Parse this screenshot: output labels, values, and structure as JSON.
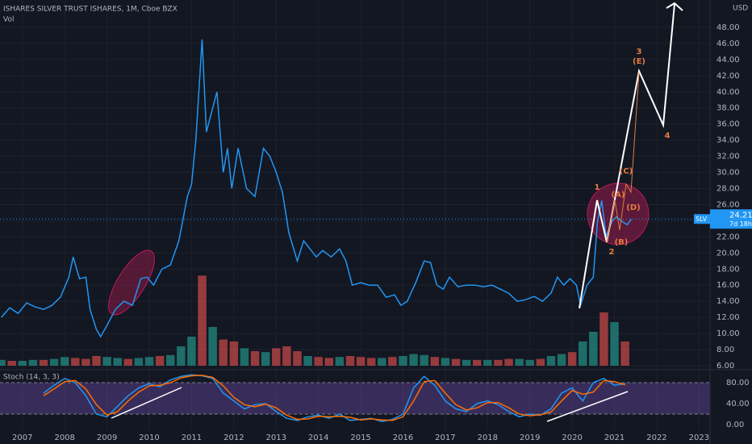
{
  "header": {
    "title": "ISHARES SILVER TRUST ISHARES, 1M, Cboe BZX",
    "volume_label": "Vol",
    "currency": "USD"
  },
  "chart_data": [
    {
      "type": "line",
      "color": "#2196f3",
      "xlim": [
        2006.47,
        2023.26
      ],
      "ylim": [
        5.5,
        51.4
      ],
      "xticks": [
        2007,
        2008,
        2009,
        2010,
        2011,
        2012,
        2013,
        2014,
        2015,
        2016,
        2017,
        2018,
        2019,
        2020,
        2021,
        2022,
        2023
      ],
      "yticks": [
        {
          "value": 6,
          "label": "6.00"
        },
        {
          "value": 8,
          "label": "8.00"
        },
        {
          "value": 10,
          "label": "10.00"
        },
        {
          "value": 12,
          "label": "12.00"
        },
        {
          "value": 14,
          "label": "14.00"
        },
        {
          "value": 16,
          "label": "16.00"
        },
        {
          "value": 18,
          "label": "18.00"
        },
        {
          "value": 20,
          "label": "20.00"
        },
        {
          "value": 22,
          "label": "22.00"
        },
        {
          "value": 24,
          "label": "24.00"
        },
        {
          "value": 26,
          "label": "26.00"
        },
        {
          "value": 28,
          "label": "28.00"
        },
        {
          "value": 30,
          "label": "30.00"
        },
        {
          "value": 32,
          "label": "32.00"
        },
        {
          "value": 34,
          "label": "34.00"
        },
        {
          "value": 36,
          "label": "36.00"
        },
        {
          "value": 38,
          "label": "38.00"
        },
        {
          "value": 40,
          "label": "40.00"
        },
        {
          "value": 42,
          "label": "42.00"
        },
        {
          "value": 44,
          "label": "44.00"
        },
        {
          "value": 46,
          "label": "46.00"
        },
        {
          "value": 48,
          "label": "48.00"
        }
      ],
      "x": [
        2006.5,
        2006.7,
        2006.9,
        2007.1,
        2007.3,
        2007.5,
        2007.7,
        2007.9,
        2008.1,
        2008.2,
        2008.35,
        2008.5,
        2008.6,
        2008.75,
        2008.85,
        2009.0,
        2009.2,
        2009.4,
        2009.6,
        2009.8,
        2009.95,
        2010.1,
        2010.3,
        2010.5,
        2010.7,
        2010.9,
        2011.0,
        2011.1,
        2011.25,
        2011.35,
        2011.5,
        2011.6,
        2011.75,
        2011.85,
        2011.95,
        2012.1,
        2012.3,
        2012.5,
        2012.7,
        2012.85,
        2013.0,
        2013.15,
        2013.3,
        2013.5,
        2013.65,
        2013.8,
        2013.95,
        2014.1,
        2014.3,
        2014.5,
        2014.65,
        2014.8,
        2015.0,
        2015.2,
        2015.4,
        2015.6,
        2015.8,
        2015.95,
        2016.1,
        2016.3,
        2016.5,
        2016.65,
        2016.8,
        2016.95,
        2017.1,
        2017.3,
        2017.5,
        2017.7,
        2017.9,
        2018.1,
        2018.3,
        2018.5,
        2018.7,
        2018.9,
        2019.1,
        2019.3,
        2019.5,
        2019.65,
        2019.8,
        2019.95,
        2020.1,
        2020.2,
        2020.35,
        2020.5,
        2020.6,
        2020.7,
        2020.8,
        2020.95,
        2021.05,
        2021.15,
        2021.3,
        2021.4
      ],
      "values": [
        12.0,
        13.2,
        12.5,
        13.8,
        13.3,
        13.0,
        13.5,
        14.5,
        17.0,
        19.5,
        16.8,
        17.0,
        13.0,
        10.5,
        9.6,
        11.0,
        13.0,
        14.0,
        13.5,
        16.8,
        17.0,
        16.0,
        18.0,
        18.5,
        21.5,
        27.0,
        28.5,
        34.0,
        46.5,
        35.0,
        38.0,
        40.0,
        30.0,
        33.0,
        28.0,
        33.0,
        28.0,
        27.0,
        33.0,
        32.0,
        30.0,
        27.5,
        22.5,
        19.0,
        21.5,
        20.5,
        19.5,
        20.3,
        19.5,
        20.5,
        19.0,
        16.0,
        16.3,
        16.0,
        16.0,
        14.5,
        14.8,
        13.5,
        14.0,
        16.3,
        19.0,
        18.8,
        16.0,
        15.5,
        17.0,
        15.8,
        16.0,
        16.0,
        15.8,
        16.0,
        15.5,
        15.0,
        14.0,
        14.2,
        14.6,
        14.0,
        15.0,
        17.0,
        16.0,
        16.8,
        16.0,
        13.5,
        16.0,
        17.0,
        24.0,
        26.5,
        22.0,
        24.0,
        24.5,
        24.0,
        23.5,
        24.2
      ],
      "last_price": {
        "symbol": "SLV",
        "value": 24.21,
        "countdown": "7d 18h"
      },
      "annotations": [
        "1",
        "2",
        "3",
        "(E)",
        "4",
        "(A)",
        "(B)",
        "(C)",
        "(D)"
      ]
    },
    {
      "type": "volume",
      "ylim": [
        0,
        100
      ],
      "colors": [
        "#26a69a",
        "#ef5350"
      ],
      "x": [
        2006.5,
        2006.75,
        2007,
        2007.25,
        2007.5,
        2007.75,
        2008,
        2008.25,
        2008.5,
        2008.75,
        2009,
        2009.25,
        2009.5,
        2009.75,
        2010,
        2010.25,
        2010.5,
        2010.75,
        2011,
        2011.25,
        2011.5,
        2011.75,
        2012,
        2012.25,
        2012.5,
        2012.75,
        2013,
        2013.25,
        2013.5,
        2013.75,
        2014,
        2014.25,
        2014.5,
        2014.75,
        2015,
        2015.25,
        2015.5,
        2015.75,
        2016,
        2016.25,
        2016.5,
        2016.75,
        2017,
        2017.25,
        2017.5,
        2017.75,
        2018,
        2018.25,
        2018.5,
        2018.75,
        2019,
        2019.25,
        2019.5,
        2019.75,
        2020,
        2020.25,
        2020.5,
        2020.75,
        2021,
        2021.25
      ],
      "values": [
        6,
        5,
        5,
        6,
        6,
        7,
        9,
        8,
        7,
        10,
        9,
        8,
        7,
        8,
        9,
        10,
        11,
        20,
        30,
        93,
        40,
        27,
        25,
        18,
        15,
        14,
        18,
        20,
        15,
        10,
        9,
        8,
        9,
        10,
        9,
        8,
        8,
        9,
        10,
        12,
        11,
        9,
        8,
        7,
        6,
        6,
        6,
        6,
        7,
        7,
        6,
        7,
        10,
        12,
        14,
        25,
        35,
        55,
        45,
        25
      ],
      "color_index": [
        0,
        1,
        0,
        0,
        1,
        0,
        0,
        1,
        1,
        1,
        0,
        0,
        1,
        0,
        0,
        1,
        0,
        0,
        0,
        1,
        0,
        1,
        1,
        0,
        1,
        0,
        1,
        1,
        1,
        0,
        1,
        1,
        0,
        1,
        1,
        1,
        0,
        1,
        0,
        0,
        0,
        1,
        0,
        1,
        0,
        1,
        0,
        1,
        1,
        0,
        0,
        1,
        0,
        0,
        1,
        0,
        0,
        1,
        0,
        1
      ]
    },
    {
      "type": "stoch",
      "title": "Stoch (14, 3, 3)",
      "xlim": [
        2006.47,
        2023.26
      ],
      "ylim": [
        -9.2,
        101.5
      ],
      "band": [
        20,
        80
      ],
      "band_color": "rgba(126,87,194,0.35)",
      "yticks": [
        {
          "value": 0,
          "label": "0.00"
        },
        {
          "value": 40,
          "label": "40.00"
        },
        {
          "value": 80,
          "label": "80.00"
        }
      ],
      "x": [
        2007.5,
        2007.75,
        2008,
        2008.25,
        2008.5,
        2008.75,
        2009,
        2009.25,
        2009.5,
        2009.75,
        2010,
        2010.25,
        2010.5,
        2010.75,
        2011,
        2011.25,
        2011.5,
        2011.75,
        2012,
        2012.25,
        2012.5,
        2012.75,
        2013,
        2013.25,
        2013.5,
        2013.75,
        2014,
        2014.25,
        2014.5,
        2014.75,
        2015,
        2015.25,
        2015.5,
        2015.75,
        2016,
        2016.25,
        2016.5,
        2016.75,
        2017,
        2017.25,
        2017.5,
        2017.75,
        2018,
        2018.25,
        2018.5,
        2018.75,
        2019,
        2019.25,
        2019.5,
        2019.75,
        2020,
        2020.25,
        2020.5,
        2020.75,
        2021,
        2021.25
      ],
      "series": [
        {
          "color": "#2196f3",
          "values": [
            60,
            75,
            88,
            80,
            55,
            20,
            15,
            35,
            55,
            70,
            78,
            72,
            85,
            92,
            95,
            93,
            88,
            60,
            45,
            30,
            38,
            40,
            25,
            12,
            8,
            15,
            18,
            12,
            20,
            8,
            10,
            12,
            6,
            10,
            20,
            70,
            92,
            75,
            45,
            30,
            25,
            40,
            45,
            38,
            25,
            15,
            20,
            18,
            30,
            60,
            70,
            45,
            80,
            88,
            75,
            78
          ]
        },
        {
          "color": "#ff6d00",
          "values": [
            55,
            68,
            82,
            84,
            68,
            38,
            18,
            25,
            45,
            62,
            74,
            75,
            80,
            89,
            93,
            94,
            90,
            74,
            52,
            38,
            34,
            39,
            32,
            18,
            10,
            11,
            16,
            15,
            16,
            14,
            9,
            11,
            9,
            8,
            15,
            45,
            82,
            84,
            60,
            38,
            28,
            32,
            42,
            42,
            32,
            20,
            17,
            19,
            24,
            45,
            65,
            58,
            62,
            84,
            82,
            76
          ]
        }
      ]
    }
  ]
}
